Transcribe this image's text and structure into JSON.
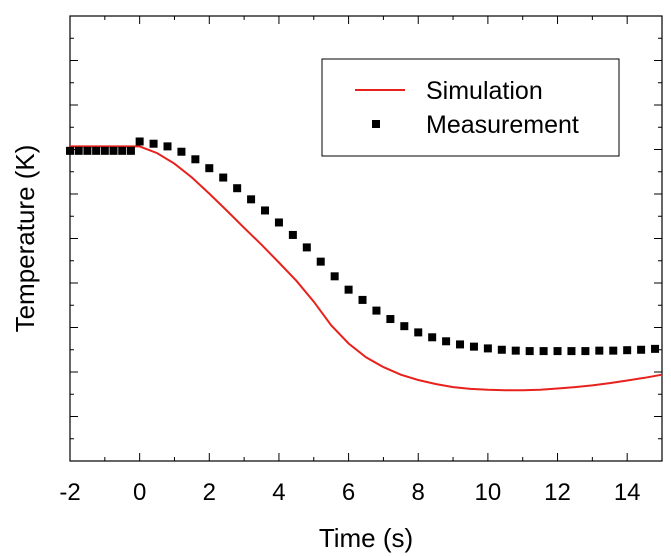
{
  "chart_data": {
    "type": "line",
    "title": "",
    "xlabel": "Time (s)",
    "ylabel": "Temperature (K)",
    "xlim": [
      -2,
      15
    ],
    "ylim": [
      0,
      1
    ],
    "xticks": [
      "-2",
      "0",
      "2",
      "4",
      "6",
      "8",
      "10",
      "12",
      "14"
    ],
    "xtick_values": [
      -2,
      0,
      2,
      4,
      6,
      8,
      10,
      12,
      14
    ],
    "yticks_count": 10,
    "ytick_labels_shown": false,
    "grid": false,
    "legend_position": "top-right",
    "series": [
      {
        "name": "Simulation",
        "kind": "line",
        "color": "#e8211c",
        "x": [
          -2,
          -1,
          0,
          0.5,
          1,
          1.5,
          2,
          2.5,
          3,
          3.5,
          4,
          4.5,
          5,
          5.5,
          6,
          6.5,
          7,
          7.5,
          8,
          8.5,
          9,
          9.5,
          10,
          10.5,
          11,
          11.5,
          12,
          12.5,
          13,
          13.5,
          14,
          14.5,
          15
        ],
        "y": [
          0.707,
          0.707,
          0.707,
          0.692,
          0.668,
          0.637,
          0.601,
          0.563,
          0.524,
          0.486,
          0.446,
          0.405,
          0.358,
          0.305,
          0.264,
          0.233,
          0.211,
          0.194,
          0.182,
          0.173,
          0.166,
          0.162,
          0.16,
          0.159,
          0.159,
          0.16,
          0.163,
          0.166,
          0.17,
          0.175,
          0.181,
          0.187,
          0.194
        ]
      },
      {
        "name": "Measurement",
        "kind": "scatter",
        "color": "#000000",
        "x": [
          -2,
          -1.75,
          -1.5,
          -1.25,
          -1,
          -0.75,
          -0.5,
          -0.25,
          0,
          0.4,
          0.8,
          1.2,
          1.6,
          2.0,
          2.4,
          2.8,
          3.2,
          3.6,
          4.0,
          4.4,
          4.8,
          5.2,
          5.6,
          6.0,
          6.4,
          6.8,
          7.2,
          7.6,
          8.0,
          8.4,
          8.8,
          9.2,
          9.6,
          10.0,
          10.4,
          10.8,
          11.2,
          11.6,
          12.0,
          12.4,
          12.8,
          13.2,
          13.6,
          14.0,
          14.4,
          14.8
        ],
        "y": [
          0.697,
          0.697,
          0.697,
          0.697,
          0.697,
          0.697,
          0.697,
          0.697,
          0.718,
          0.713,
          0.707,
          0.695,
          0.678,
          0.658,
          0.637,
          0.613,
          0.588,
          0.563,
          0.536,
          0.508,
          0.48,
          0.448,
          0.415,
          0.385,
          0.362,
          0.338,
          0.319,
          0.303,
          0.289,
          0.278,
          0.269,
          0.262,
          0.257,
          0.253,
          0.25,
          0.248,
          0.247,
          0.247,
          0.247,
          0.247,
          0.247,
          0.248,
          0.248,
          0.249,
          0.25,
          0.252
        ]
      }
    ]
  }
}
